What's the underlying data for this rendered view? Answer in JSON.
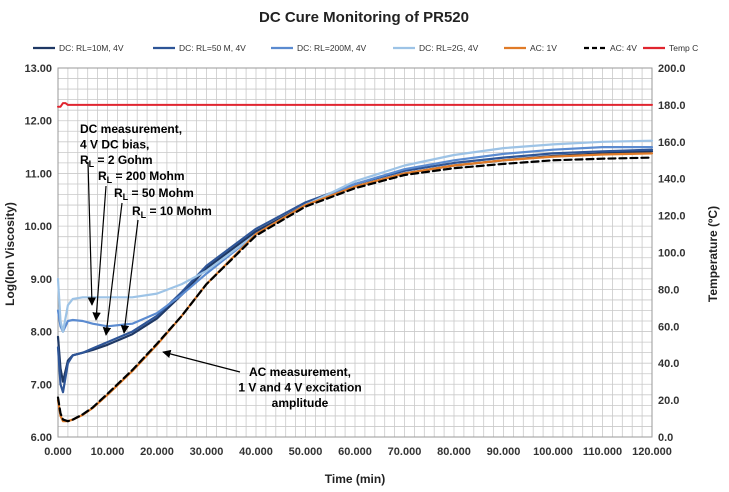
{
  "chart_data": {
    "type": "line",
    "title": "DC Cure Monitoring of PR520",
    "xlabel": "Time (min)",
    "ylabel": "Log(Ion Viscosity)",
    "y2label": "Temperature (ºC)",
    "xlim": [
      0,
      120
    ],
    "ylim": [
      6,
      13
    ],
    "y2lim": [
      0,
      200
    ],
    "grid": true,
    "legend_position": "top",
    "x_ticks": [
      "0.000",
      "10.000",
      "20.000",
      "30.000",
      "40.000",
      "50.000",
      "60.000",
      "70.000",
      "80.000",
      "90.000",
      "100.000",
      "110.000",
      "120.000"
    ],
    "y_ticks": [
      "6.00",
      "7.00",
      "8.00",
      "9.00",
      "10.00",
      "11.00",
      "12.00",
      "13.00"
    ],
    "y2_ticks": [
      "0.0",
      "20.0",
      "40.0",
      "60.0",
      "80.0",
      "100.0",
      "120.0",
      "140.0",
      "160.0",
      "180.0",
      "200.0"
    ],
    "series": [
      {
        "name": "DC: RL=10M, 4V",
        "color": "#1f3864",
        "dash": "",
        "axis": "y",
        "x": [
          0,
          0.5,
          1,
          2,
          3,
          5,
          7,
          10,
          15,
          20,
          25,
          30,
          40,
          50,
          60,
          70,
          80,
          90,
          100,
          110,
          120
        ],
        "y": [
          7.9,
          7.3,
          7.05,
          7.45,
          7.55,
          7.6,
          7.65,
          7.75,
          7.95,
          8.25,
          8.7,
          9.2,
          9.9,
          10.4,
          10.75,
          11.0,
          11.15,
          11.25,
          11.33,
          11.38,
          11.42
        ]
      },
      {
        "name": "DC: RL=50 M, 4V",
        "color": "#2e5597",
        "dash": "",
        "axis": "y",
        "x": [
          0,
          0.5,
          1,
          2,
          3,
          5,
          7,
          10,
          15,
          20,
          25,
          30,
          40,
          50,
          60,
          70,
          80,
          90,
          100,
          110,
          120
        ],
        "y": [
          7.7,
          7.0,
          6.85,
          7.4,
          7.55,
          7.6,
          7.68,
          7.8,
          8.0,
          8.3,
          8.75,
          9.25,
          9.95,
          10.45,
          10.8,
          11.05,
          11.2,
          11.3,
          11.38,
          11.42,
          11.45
        ]
      },
      {
        "name": "DC: RL=200M, 4V",
        "color": "#5b8bd0",
        "dash": "",
        "axis": "y",
        "x": [
          0,
          0.5,
          1,
          2,
          3,
          5,
          7,
          10,
          15,
          20,
          25,
          30,
          40,
          50,
          60,
          70,
          80,
          90,
          100,
          110,
          120
        ],
        "y": [
          8.4,
          8.1,
          8.0,
          8.2,
          8.22,
          8.2,
          8.15,
          8.1,
          8.15,
          8.35,
          8.7,
          9.1,
          9.85,
          10.4,
          10.8,
          11.08,
          11.25,
          11.37,
          11.45,
          11.5,
          11.5
        ]
      },
      {
        "name": "DC: RL=2G, 4V",
        "color": "#9dc3e6",
        "dash": "",
        "axis": "y",
        "x": [
          0,
          0.5,
          1,
          2,
          3,
          5,
          7,
          10,
          15,
          20,
          25,
          30,
          40,
          50,
          60,
          70,
          80,
          90,
          100,
          110,
          120
        ],
        "y": [
          9.0,
          8.2,
          8.0,
          8.5,
          8.62,
          8.65,
          8.65,
          8.65,
          8.65,
          8.72,
          8.9,
          9.15,
          9.85,
          10.4,
          10.85,
          11.15,
          11.35,
          11.48,
          11.55,
          11.6,
          11.62
        ]
      },
      {
        "name": "AC: 1V",
        "color": "#e07b28",
        "dash": "",
        "axis": "y",
        "x": [
          0,
          0.5,
          1,
          2,
          3,
          5,
          7,
          10,
          15,
          20,
          25,
          30,
          40,
          50,
          60,
          70,
          80,
          90,
          100,
          110,
          120
        ],
        "y": [
          6.7,
          6.4,
          6.3,
          6.3,
          6.33,
          6.42,
          6.55,
          6.8,
          7.25,
          7.75,
          8.3,
          8.9,
          9.85,
          10.4,
          10.75,
          11.0,
          11.15,
          11.25,
          11.32,
          11.36,
          11.38
        ]
      },
      {
        "name": "AC: 4V",
        "color": "#000000",
        "dash": "7 4",
        "axis": "y",
        "x": [
          0,
          0.5,
          1,
          2,
          3,
          5,
          7,
          10,
          15,
          20,
          25,
          30,
          40,
          50,
          60,
          70,
          80,
          90,
          100,
          110,
          120
        ],
        "y": [
          6.75,
          6.45,
          6.33,
          6.3,
          6.33,
          6.43,
          6.56,
          6.82,
          7.27,
          7.77,
          8.3,
          8.9,
          9.82,
          10.37,
          10.72,
          10.97,
          11.1,
          11.18,
          11.25,
          11.28,
          11.3
        ]
      },
      {
        "name": "Temp C",
        "color": "#e0252f",
        "dash": "",
        "axis": "y2",
        "x": [
          0,
          0.5,
          1,
          1.5,
          2,
          120
        ],
        "y": [
          179,
          179,
          181,
          181,
          180,
          180
        ]
      }
    ],
    "annotations": [
      {
        "lines": [
          "DC measurement,",
          "4 V DC bias,",
          "R_L = 2 Gohm"
        ]
      },
      {
        "lines": [
          "R_L = 200 Mohm"
        ]
      },
      {
        "lines": [
          "R_L = 50 Mohm"
        ]
      },
      {
        "lines": [
          "R_L = 10 Mohm"
        ]
      },
      {
        "lines": [
          "AC measurement,",
          "1 V and 4 V excitation",
          "amplitude"
        ]
      }
    ]
  }
}
